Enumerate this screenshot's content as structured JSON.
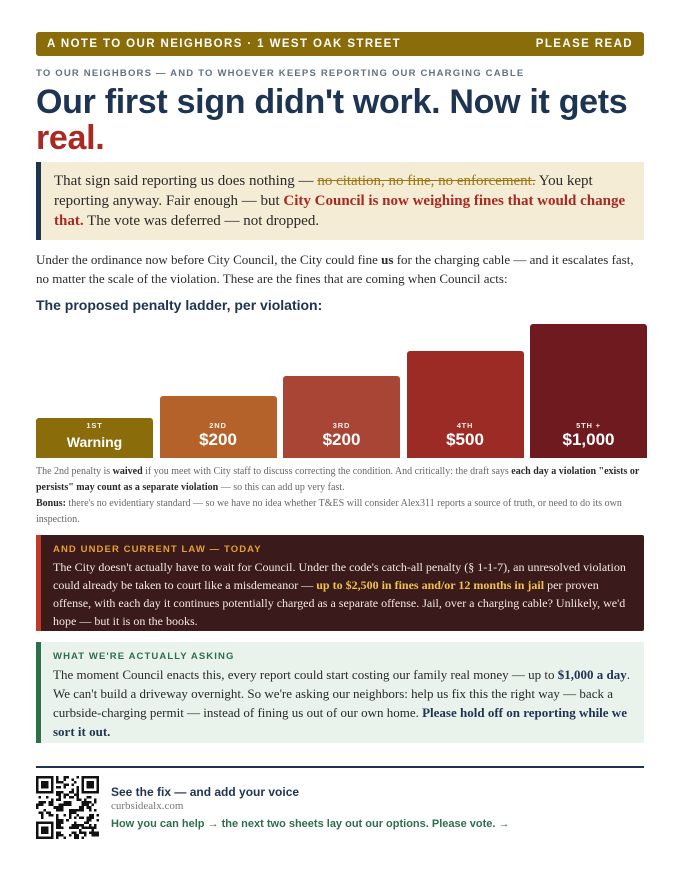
{
  "topbar": {
    "left": "A NOTE TO OUR NEIGHBORS · 1 WEST OAK STREET",
    "right": "PLEASE READ"
  },
  "kicker": "TO OUR NEIGHBORS — AND TO WHOEVER KEEPS REPORTING OUR CHARGING CABLE",
  "headline": {
    "main": "Our first sign didn't work. Now it gets",
    "accent": "real."
  },
  "callout": {
    "t1": "That sign said reporting us does nothing —",
    "strike": "no citation, no fine, no enforcement.",
    "t2": "You kept reporting anyway. Fair enough — but",
    "emph": "City Council is now weighing fines that would change that.",
    "t3": "The vote was deferred — not dropped."
  },
  "intro": {
    "t1": "Under the ordinance now before City Council, the City could fine",
    "emph": "us",
    "t2": "for the charging cable — and it escalates fast, no matter the scale of the violation. These are the fines that are coming when Council acts:"
  },
  "ladder": {
    "title": "The proposed penalty ladder, per violation:",
    "steps": [
      {
        "ord": "1ST",
        "label": "Warning",
        "amount": 0,
        "color": "#8b6c0a"
      },
      {
        "ord": "2ND",
        "label": "$200",
        "amount": 200,
        "color": "#b5622a"
      },
      {
        "ord": "3RD",
        "label": "$200",
        "amount": 200,
        "color": "#a94534"
      },
      {
        "ord": "4TH",
        "label": "$500",
        "amount": 500,
        "color": "#9c2a25"
      },
      {
        "ord": "5TH +",
        "label": "$1,000",
        "amount": 1000,
        "color": "#6e1a1e"
      }
    ]
  },
  "note1": {
    "t1": "The 2nd penalty is",
    "b1": "waived",
    "t2": "if you meet with City staff to discuss correcting the condition. And critically: the draft says",
    "b2": "each day a violation \"exists or persists\" may count as a separate violation",
    "t3": "— so this can add up very fast."
  },
  "note2": {
    "b": "Bonus:",
    "t": "there's no evidentiary standard — so we have no idea whether T&ES will consider Alex311 reports a source of truth, or need to do its own inspection."
  },
  "law": {
    "tag": "AND UNDER CURRENT LAW — TODAY",
    "t1": "The City doesn't actually have to wait for Council. Under the code's catch-all penalty (§ 1-1-7), an unresolved violation could already be taken to court like a misdemeanor —",
    "hl": "up to $2,500 in fines and/or 12 months in jail",
    "t2": "per proven offense, with each day it continues potentially charged as a separate offense. Jail, over a charging cable? Unlikely, we'd hope — but it is on the books."
  },
  "ask": {
    "tag": "WHAT WE'RE ACTUALLY ASKING",
    "t1": "The moment Council enacts this, every report could start costing our family real money — up to",
    "b1": "$1,000 a day",
    "t2": ". We can't build a driveway overnight. So we're asking our neighbors: help us fix this the right way — back a curbside-charging permit — instead of fining us out of our own home.",
    "b2": "Please hold off on reporting while we sort it out."
  },
  "cta": {
    "title": "See the fix — and add your voice",
    "url": "curbsidealx.com",
    "help": "How you can help → the next two sheets lay out our options. Please vote. →"
  }
}
